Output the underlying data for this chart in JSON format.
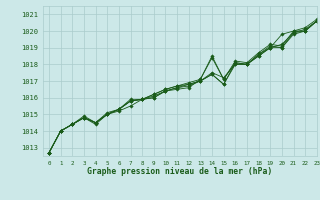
{
  "background_color": "#cce8e8",
  "grid_color": "#aacccc",
  "line_color": "#1a5c1a",
  "marker_color": "#1a5c1a",
  "title": "Graphe pression niveau de la mer (hPa)",
  "title_color": "#1a5c1a",
  "xlim": [
    -0.5,
    23
  ],
  "ylim": [
    1012.5,
    1021.5
  ],
  "yticks": [
    1013,
    1014,
    1015,
    1016,
    1017,
    1018,
    1019,
    1020,
    1021
  ],
  "xticks": [
    0,
    1,
    2,
    3,
    4,
    5,
    6,
    7,
    8,
    9,
    10,
    11,
    12,
    13,
    14,
    15,
    16,
    17,
    18,
    19,
    20,
    21,
    22,
    23
  ],
  "series": [
    [
      1012.7,
      1014.0,
      1014.4,
      1014.8,
      1014.5,
      1015.0,
      1015.3,
      1015.8,
      1015.9,
      1016.0,
      1016.4,
      1016.5,
      1016.6,
      1017.1,
      1018.4,
      1017.1,
      1018.1,
      1018.0,
      1018.6,
      1019.1,
      1019.0,
      1019.9,
      1020.1,
      1020.6
    ],
    [
      1012.7,
      1014.0,
      1014.4,
      1014.8,
      1014.5,
      1015.0,
      1015.3,
      1015.8,
      1015.9,
      1016.2,
      1016.5,
      1016.7,
      1016.8,
      1017.0,
      1017.5,
      1017.2,
      1018.0,
      1018.0,
      1018.5,
      1019.0,
      1019.8,
      1020.0,
      1020.0,
      1020.6
    ],
    [
      1012.7,
      1014.0,
      1014.4,
      1014.8,
      1014.5,
      1015.0,
      1015.3,
      1015.8,
      1015.9,
      1016.1,
      1016.4,
      1016.6,
      1016.7,
      1017.0,
      1017.4,
      1016.8,
      1018.1,
      1018.0,
      1018.6,
      1019.0,
      1019.2,
      1019.9,
      1020.0,
      1020.6
    ],
    [
      1012.7,
      1014.0,
      1014.4,
      1014.8,
      1014.4,
      1015.0,
      1015.2,
      1015.5,
      1015.9,
      1016.0,
      1016.4,
      1016.6,
      1016.8,
      1017.0,
      1017.4,
      1016.8,
      1018.0,
      1018.0,
      1018.5,
      1019.0,
      1019.0,
      1019.8,
      1020.0,
      1020.6
    ],
    [
      1012.7,
      1014.0,
      1014.4,
      1014.9,
      1014.5,
      1015.1,
      1015.3,
      1015.9,
      1015.9,
      1016.2,
      1016.5,
      1016.7,
      1016.9,
      1017.1,
      1018.5,
      1017.1,
      1018.2,
      1018.1,
      1018.7,
      1019.2,
      1019.1,
      1020.0,
      1020.2,
      1020.7
    ]
  ],
  "figsize": [
    3.2,
    2.0
  ],
  "dpi": 100
}
